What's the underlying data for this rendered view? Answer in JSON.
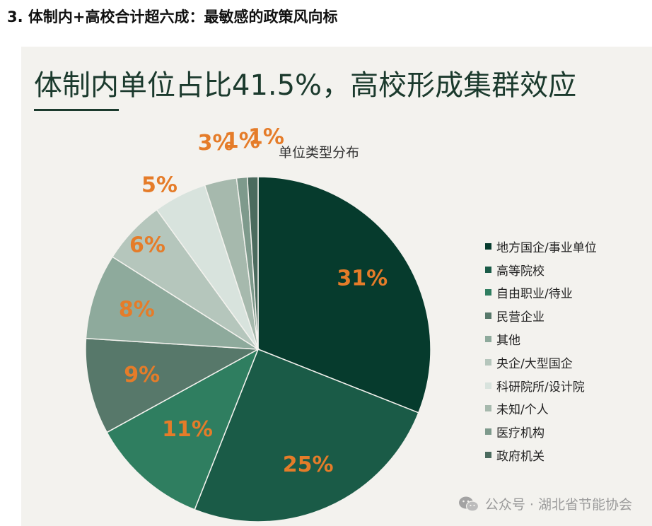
{
  "section_heading": "3. 体制内+高校合计超六成：最敏感的政策风向标",
  "card_title": "体制内单位占比41.5%，高校形成集群效应",
  "watermark_text": "公众号 · 湖北省节能协会",
  "chart_data": {
    "type": "pie",
    "title": "单位类型分布",
    "label_color": "#e57c29",
    "slices": [
      {
        "name": "地方国企/事业单位",
        "value": 31,
        "label": "31%",
        "color": "#063b2d"
      },
      {
        "name": "高等院校",
        "value": 25,
        "label": "25%",
        "color": "#1a5b47"
      },
      {
        "name": "自由职业/待业",
        "value": 11,
        "label": "11%",
        "color": "#2f7e60"
      },
      {
        "name": "民营企业",
        "value": 9,
        "label": "9%",
        "color": "#57786a"
      },
      {
        "name": "其他",
        "value": 8,
        "label": "8%",
        "color": "#8eaa9c"
      },
      {
        "name": "央企/大型国企",
        "value": 6,
        "label": "6%",
        "color": "#b5c6bc"
      },
      {
        "name": "科研院所/设计院",
        "value": 5,
        "label": "5%",
        "color": "#d8e3dd"
      },
      {
        "name": "未知/个人",
        "value": 3,
        "label": "3%",
        "color": "#a6b9ad"
      },
      {
        "name": "医疗机构",
        "value": 1,
        "label": "1%",
        "color": "#7e9a8c"
      },
      {
        "name": "政府机关",
        "value": 1,
        "label": "1%",
        "color": "#4b6b5e"
      }
    ]
  }
}
